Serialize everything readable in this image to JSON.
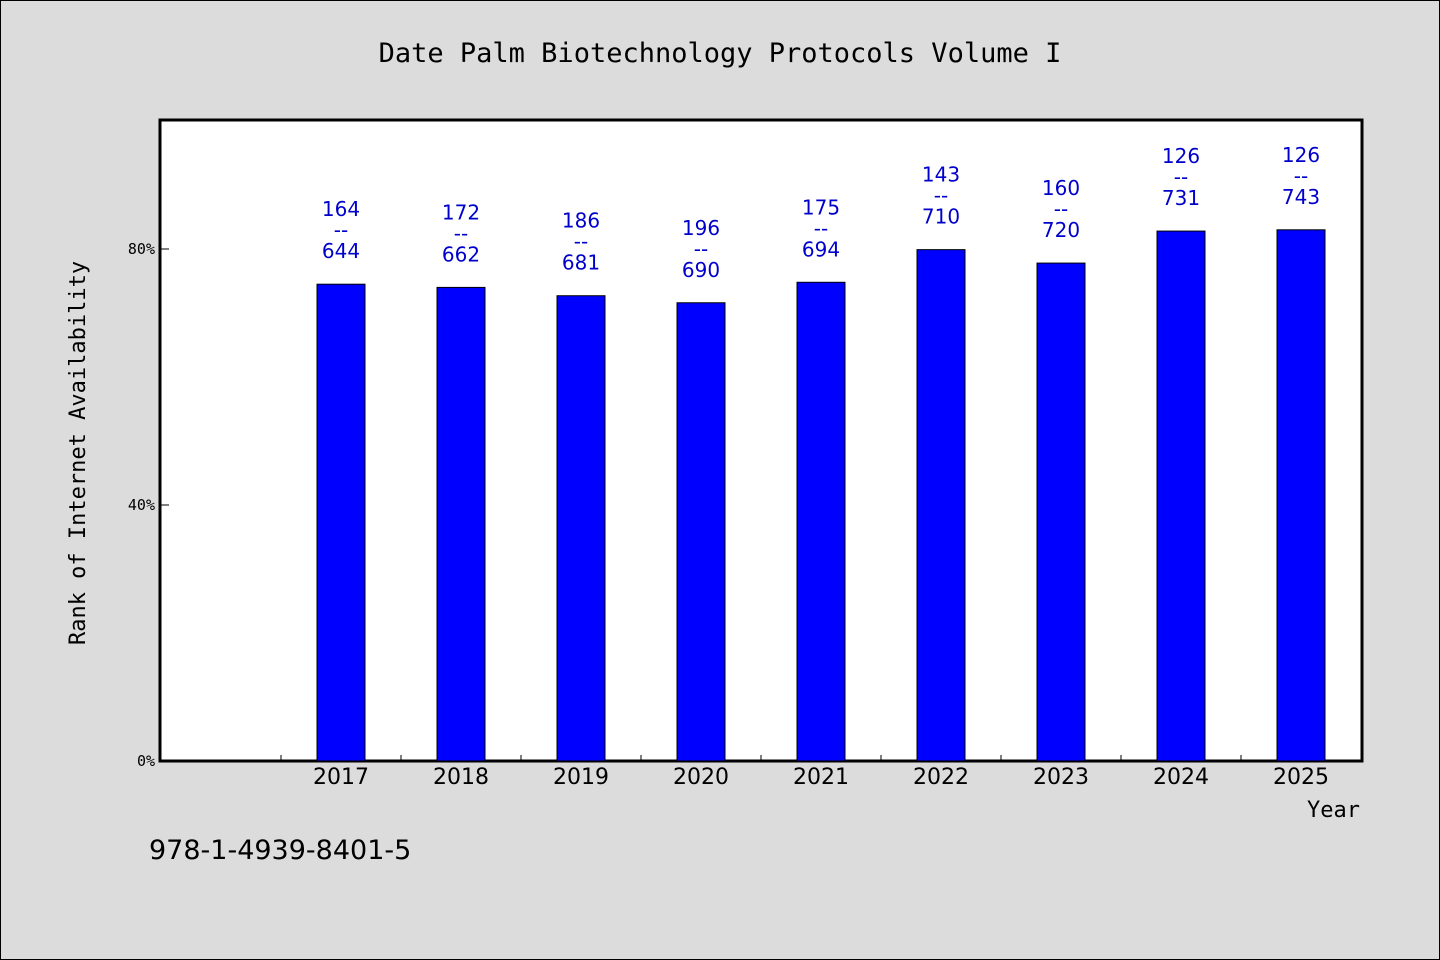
{
  "chart_data": {
    "type": "bar",
    "title": "Date Palm Biotechnology Protocols Volume I",
    "xlabel": "Year",
    "ylabel": "Rank of Internet Availability",
    "categories": [
      "2017",
      "2018",
      "2019",
      "2020",
      "2021",
      "2022",
      "2023",
      "2024",
      "2025"
    ],
    "values": [
      74.5,
      74.0,
      72.7,
      71.6,
      74.8,
      79.9,
      77.8,
      82.8,
      83.0
    ],
    "data_labels": [
      [
        "164",
        "--",
        "644"
      ],
      [
        "172",
        "--",
        "662"
      ],
      [
        "186",
        "--",
        "681"
      ],
      [
        "196",
        "--",
        "690"
      ],
      [
        "175",
        "--",
        "694"
      ],
      [
        "143",
        "--",
        "710"
      ],
      [
        "160",
        "--",
        "720"
      ],
      [
        "126",
        "--",
        "731"
      ],
      [
        "126",
        "--",
        "743"
      ]
    ],
    "yticks": [
      {
        "value": 0,
        "label": "0%"
      },
      {
        "value": 40,
        "label": "40%"
      },
      {
        "value": 80,
        "label": "80%"
      }
    ],
    "ylim": [
      0,
      100
    ],
    "grid": false,
    "bar_color": "#0000ff",
    "label_color": "#0000cc",
    "plot_background": "#ffffff",
    "page_background": "#dcdcdc"
  },
  "footer": {
    "isbn": "978-1-4939-8401-5"
  }
}
